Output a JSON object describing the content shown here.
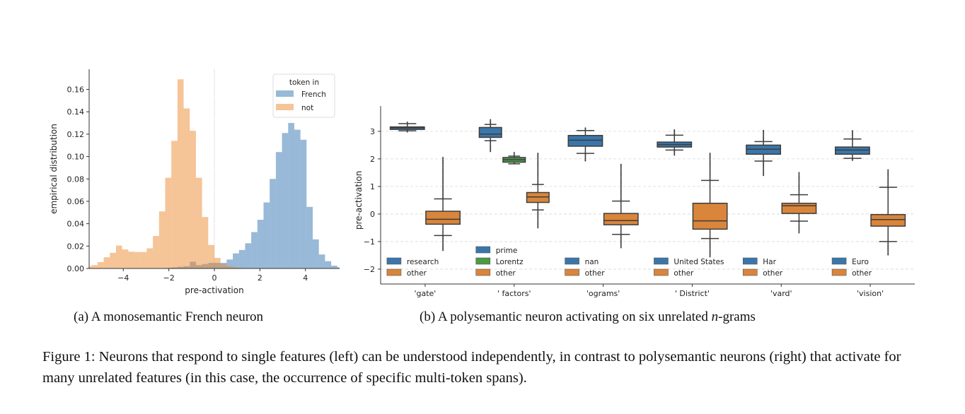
{
  "chart_data": [
    {
      "type": "histogram",
      "xlabel": "pre-activation",
      "ylabel": "empirical distribution",
      "xlim": [
        -5.5,
        5.5
      ],
      "ylim": [
        0,
        0.178
      ],
      "xticks": [
        -4,
        -2,
        0,
        2,
        4
      ],
      "xtick_labels": [
        "−4",
        "−2",
        "0",
        "2",
        "4"
      ],
      "yticks": [
        0,
        0.02,
        0.04,
        0.06,
        0.08,
        0.1,
        0.12,
        0.14,
        0.16
      ],
      "ytick_labels": [
        "0.00",
        "0.02",
        "0.04",
        "0.06",
        "0.08",
        "0.10",
        "0.12",
        "0.14",
        "0.16"
      ],
      "reference_line_x": 0,
      "legend": {
        "title": "token in",
        "placement": "top-right"
      },
      "bin_width": 0.27,
      "series": [
        {
          "name": "French",
          "color": "#3274b0",
          "bin_start": -2.16,
          "values": [
            0.0005,
            0.001,
            0.0015,
            0.002,
            0.006,
            0.003,
            0.004,
            0.005,
            0.005,
            0.005,
            0.008,
            0.0135,
            0.0165,
            0.0225,
            0.0325,
            0.0435,
            0.059,
            0.08,
            0.104,
            0.121,
            0.13,
            0.124,
            0.115,
            0.055,
            0.026,
            0.0125,
            0.0065,
            0.0025,
            0.001
          ]
        },
        {
          "name": "not",
          "color": "#ec8a2f",
          "bin_start": -5.67,
          "values": [
            0.002,
            0.003,
            0.0057,
            0.01,
            0.014,
            0.0205,
            0.017,
            0.015,
            0.0147,
            0.0147,
            0.018,
            0.029,
            0.051,
            0.081,
            0.114,
            0.169,
            0.143,
            0.123,
            0.081,
            0.046,
            0.021,
            0.0095,
            0.004,
            0.002,
            0.001,
            0.0005,
            0.0003
          ]
        }
      ]
    },
    {
      "type": "box",
      "xlabel": "",
      "ylabel": "pre-activation",
      "ylim": [
        -2.54,
        3.92
      ],
      "yticks": [
        -2,
        -1,
        0,
        1,
        2,
        3
      ],
      "ytick_labels": [
        "−2",
        "−1",
        "0",
        "1",
        "2",
        "3"
      ],
      "grid": "horizontal dashed",
      "categories": [
        "'gate'",
        "' factors'",
        "'ograms'",
        "' District'",
        "'vard'",
        "'vision'"
      ],
      "groups": [
        {
          "category": "'gate'",
          "boxes": [
            {
              "name": "research",
              "color": "#3a76ab",
              "whislo": 3.02,
              "q1": 3.07,
              "med": 3.13,
              "q3": 3.16,
              "whishi": 3.28,
              "flier_low": 2.98,
              "flier_high": 3.33
            },
            {
              "name": "other",
              "color": "#d9853b",
              "whislo": -0.78,
              "q1": -0.37,
              "med": -0.19,
              "q3": 0.1,
              "whishi": 0.55,
              "flier_low": -1.32,
              "flier_high": 2.05
            }
          ]
        },
        {
          "category": "' factors'",
          "boxes": [
            {
              "name": "prime",
              "color": "#3a76ab",
              "whislo": 2.66,
              "q1": 2.78,
              "med": 2.9,
              "q3": 3.14,
              "whishi": 3.25,
              "flier_low": 2.27,
              "flier_high": 3.42
            },
            {
              "name": "Lorentz",
              "color": "#4b9a44",
              "whislo": 1.82,
              "q1": 1.88,
              "med": 1.97,
              "q3": 2.05,
              "whishi": 2.1,
              "flier_low": 1.82,
              "flier_high": 2.23
            },
            {
              "name": "other",
              "color": "#d9853b",
              "whislo": 0.15,
              "q1": 0.42,
              "med": 0.62,
              "q3": 0.78,
              "whishi": 1.07,
              "flier_low": -0.5,
              "flier_high": 2.2
            }
          ]
        },
        {
          "category": "'ograms'",
          "boxes": [
            {
              "name": "nan",
              "color": "#3a76ab",
              "whislo": 2.2,
              "q1": 2.46,
              "med": 2.68,
              "q3": 2.85,
              "whishi": 3.03,
              "flier_low": 1.93,
              "flier_high": 3.12
            },
            {
              "name": "other",
              "color": "#d9853b",
              "whislo": -0.74,
              "q1": -0.39,
              "med": -0.24,
              "q3": 0.02,
              "whishi": 0.47,
              "flier_low": -1.22,
              "flier_high": 1.8
            }
          ]
        },
        {
          "category": "' District'",
          "boxes": [
            {
              "name": "United States",
              "color": "#3a76ab",
              "whislo": 2.32,
              "q1": 2.43,
              "med": 2.52,
              "q3": 2.61,
              "whishi": 2.86,
              "flier_low": 2.14,
              "flier_high": 3.05
            },
            {
              "name": "other",
              "color": "#d9853b",
              "whislo": -0.89,
              "q1": -0.55,
              "med": -0.25,
              "q3": 0.39,
              "whishi": 1.22,
              "flier_low": -1.55,
              "flier_high": 2.2
            }
          ]
        },
        {
          "category": "'vard'",
          "boxes": [
            {
              "name": "Har",
              "color": "#3a76ab",
              "whislo": 1.92,
              "q1": 2.17,
              "med": 2.35,
              "q3": 2.5,
              "whishi": 2.63,
              "flier_low": 1.4,
              "flier_high": 3.03
            },
            {
              "name": "other",
              "color": "#d9853b",
              "whislo": -0.26,
              "q1": 0.02,
              "med": 0.3,
              "q3": 0.39,
              "whishi": 0.7,
              "flier_low": -0.68,
              "flier_high": 1.5
            }
          ]
        },
        {
          "category": "'vision'",
          "boxes": [
            {
              "name": "Euro",
              "color": "#3a76ab",
              "whislo": 2.02,
              "q1": 2.17,
              "med": 2.32,
              "q3": 2.43,
              "whishi": 2.72,
              "flier_low": 1.95,
              "flier_high": 3.02
            },
            {
              "name": "other",
              "color": "#d9853b",
              "whislo": -1.0,
              "q1": -0.44,
              "med": -0.2,
              "q3": -0.02,
              "whishi": 0.97,
              "flier_low": -1.48,
              "flier_high": 1.6
            }
          ]
        }
      ]
    }
  ],
  "subcaptions": {
    "a": "(a)  A monosemantic French neuron",
    "b_prefix": "(b)  A polysemantic neuron activating on six unrelated ",
    "b_var": "n",
    "b_suffix": "-grams"
  },
  "caption": "Figure 1: Neurons that respond to single features (left) can be understood independently, in contrast to polysemantic neurons (right) that activate for many unrelated features (in this case, the occurrence of specific multi-token spans)."
}
